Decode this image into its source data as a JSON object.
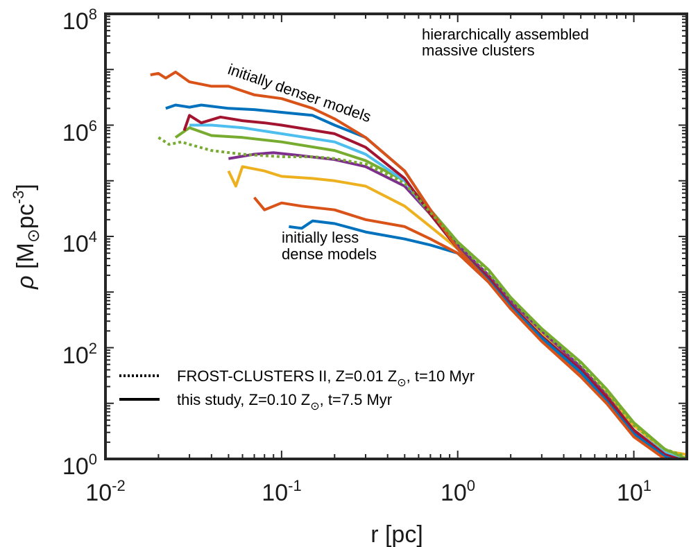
{
  "chart_data": {
    "type": "line",
    "xscale": "log",
    "yscale": "log",
    "xlim": [
      0.01,
      20
    ],
    "ylim": [
      1,
      100000000
    ],
    "xlabel": "r [pc]",
    "ylabel": {
      "symbol": "ρ",
      "open": " [M",
      "sun": "⊙",
      "unit": "pc",
      "exp": "-3",
      "close": "]"
    },
    "xticks": [
      {
        "value": 0.01,
        "base": "10",
        "exp": "-2"
      },
      {
        "value": 0.1,
        "base": "10",
        "exp": "-1"
      },
      {
        "value": 1,
        "base": "10",
        "exp": "0"
      },
      {
        "value": 10,
        "base": "10",
        "exp": "1"
      }
    ],
    "yticks": [
      {
        "value": 1,
        "base": "10",
        "exp": "0"
      },
      {
        "value": 100,
        "base": "10",
        "exp": "2"
      },
      {
        "value": 10000,
        "base": "10",
        "exp": "4"
      },
      {
        "value": 1000000,
        "base": "10",
        "exp": "6"
      },
      {
        "value": 100000000,
        "base": "10",
        "exp": "8"
      }
    ],
    "annotations": {
      "corner_line1": "hierarchically assembled",
      "corner_line2": "massive clusters",
      "denser": "initially denser models",
      "less_line1": "initially less",
      "less_line2": "dense models"
    },
    "legend": [
      {
        "style": "dotted",
        "prefix": "FROST-CLUSTERS II, Z=0.01 Z",
        "sun": "⊙",
        "suffix": ", t=10 Myr"
      },
      {
        "style": "solid",
        "prefix": "this study, Z=0.10 Z",
        "sun": "⊙",
        "suffix": ", t=7.5 Myr"
      }
    ],
    "series": [
      {
        "name": "model-1",
        "color": "#0072bd",
        "style": "solid",
        "x": [
          0.11,
          0.13,
          0.15,
          0.2,
          0.3,
          0.5,
          0.7,
          1.0,
          1.5,
          2,
          3,
          5,
          7,
          10,
          15,
          20
        ],
        "y": [
          15000,
          14000,
          19000,
          17000,
          12000,
          9000,
          7000,
          5000,
          1500,
          500,
          150,
          35,
          12,
          3,
          1.1,
          0.8
        ]
      },
      {
        "name": "model-2",
        "color": "#d95319",
        "style": "solid",
        "x": [
          0.07,
          0.08,
          0.1,
          0.13,
          0.2,
          0.3,
          0.5,
          0.7,
          1.0,
          1.5,
          2,
          3,
          5,
          7,
          10,
          15,
          20
        ],
        "y": [
          50000,
          30000,
          40000,
          35000,
          30000,
          20000,
          15000,
          9000,
          5000,
          1500,
          500,
          150,
          35,
          12,
          3,
          1.1,
          0.9
        ]
      },
      {
        "name": "model-3",
        "color": "#edb120",
        "style": "solid",
        "x": [
          0.05,
          0.055,
          0.06,
          0.08,
          0.1,
          0.15,
          0.2,
          0.3,
          0.5,
          0.7,
          1.0,
          1.5,
          2,
          3,
          5,
          7,
          10,
          15,
          20
        ],
        "y": [
          150000,
          80000,
          180000,
          150000,
          120000,
          110000,
          100000,
          80000,
          35000,
          15000,
          6000,
          1800,
          600,
          180,
          45,
          15,
          4,
          1.4,
          1.2
        ]
      },
      {
        "name": "model-4",
        "color": "#7e2f8e",
        "style": "solid",
        "x": [
          0.05,
          0.07,
          0.09,
          0.12,
          0.2,
          0.3,
          0.5,
          0.7,
          1.0,
          1.5,
          2,
          3,
          5,
          7,
          10,
          15,
          20
        ],
        "y": [
          250000,
          300000,
          320000,
          290000,
          240000,
          180000,
          80000,
          25000,
          7000,
          2000,
          700,
          200,
          45,
          14,
          3.2,
          1.2,
          0.8
        ]
      },
      {
        "name": "model-5",
        "color": "#77ac30",
        "style": "solid",
        "x": [
          0.025,
          0.03,
          0.04,
          0.06,
          0.1,
          0.2,
          0.3,
          0.5,
          0.7,
          1.0,
          1.5,
          2,
          3,
          5,
          7,
          10,
          15,
          20
        ],
        "y": [
          600000,
          900000,
          650000,
          600000,
          500000,
          350000,
          230000,
          100000,
          30000,
          8000,
          2500,
          800,
          220,
          55,
          18,
          4.5,
          1.5,
          1.0
        ]
      },
      {
        "name": "model-6",
        "color": "#4dbeee",
        "style": "solid",
        "x": [
          0.03,
          0.04,
          0.06,
          0.1,
          0.2,
          0.3,
          0.5,
          0.7,
          1.0,
          1.5,
          2,
          3,
          5,
          7,
          10,
          15,
          20
        ],
        "y": [
          1000000,
          1000000,
          900000,
          700000,
          500000,
          300000,
          100000,
          25000,
          6000,
          1800,
          600,
          160,
          40,
          13,
          3.3,
          1.3,
          0.9
        ]
      },
      {
        "name": "model-7",
        "color": "#a2142f",
        "style": "solid",
        "x": [
          0.028,
          0.03,
          0.035,
          0.045,
          0.06,
          0.08,
          0.1,
          0.2,
          0.3,
          0.5,
          0.7,
          1.0,
          1.5,
          2,
          3,
          5,
          7,
          10,
          15,
          20
        ],
        "y": [
          800000,
          1500000,
          1100000,
          1400000,
          1200000,
          1100000,
          1000000,
          700000,
          400000,
          110000,
          25000,
          6000,
          1800,
          600,
          160,
          40,
          13,
          3.3,
          1.2,
          0.9
        ]
      },
      {
        "name": "model-8",
        "color": "#0072bd",
        "style": "solid",
        "x": [
          0.022,
          0.025,
          0.03,
          0.035,
          0.05,
          0.07,
          0.1,
          0.15,
          0.2,
          0.3,
          0.5,
          0.7,
          1.0,
          1.5,
          2,
          3,
          5,
          7,
          10,
          15,
          20
        ],
        "y": [
          2000000,
          2300000,
          2100000,
          2300000,
          2000000,
          1900000,
          1700000,
          1500000,
          1000000,
          600000,
          150000,
          30000,
          6000,
          1600,
          550,
          150,
          36,
          11,
          2.8,
          1.1,
          0.8
        ]
      },
      {
        "name": "model-9",
        "color": "#d95319",
        "style": "solid",
        "x": [
          0.018,
          0.02,
          0.022,
          0.025,
          0.03,
          0.04,
          0.05,
          0.07,
          0.1,
          0.15,
          0.2,
          0.3,
          0.5,
          0.7,
          1.0,
          1.5,
          2,
          3,
          5,
          7,
          10,
          15,
          20
        ],
        "y": [
          8000000,
          8500000,
          7000000,
          9000000,
          6000000,
          5000000,
          5000000,
          3500000,
          3000000,
          2000000,
          1300000,
          600000,
          150000,
          30000,
          6000,
          1500,
          500,
          130,
          30,
          10,
          2.5,
          1.0,
          0.7
        ]
      },
      {
        "name": "frost-dotted",
        "color": "#77ac30",
        "style": "dotted",
        "x": [
          0.02,
          0.023,
          0.027,
          0.03,
          0.04,
          0.06,
          0.1,
          0.15,
          0.2,
          0.3,
          0.5,
          0.7,
          1.0,
          1.5,
          2,
          3,
          5,
          7,
          10,
          15,
          20
        ],
        "y": [
          600000,
          450000,
          500000,
          450000,
          350000,
          300000,
          270000,
          270000,
          250000,
          200000,
          90000,
          27000,
          7500,
          2200,
          750,
          200,
          50,
          16,
          4,
          1.5,
          1.1
        ]
      }
    ]
  }
}
